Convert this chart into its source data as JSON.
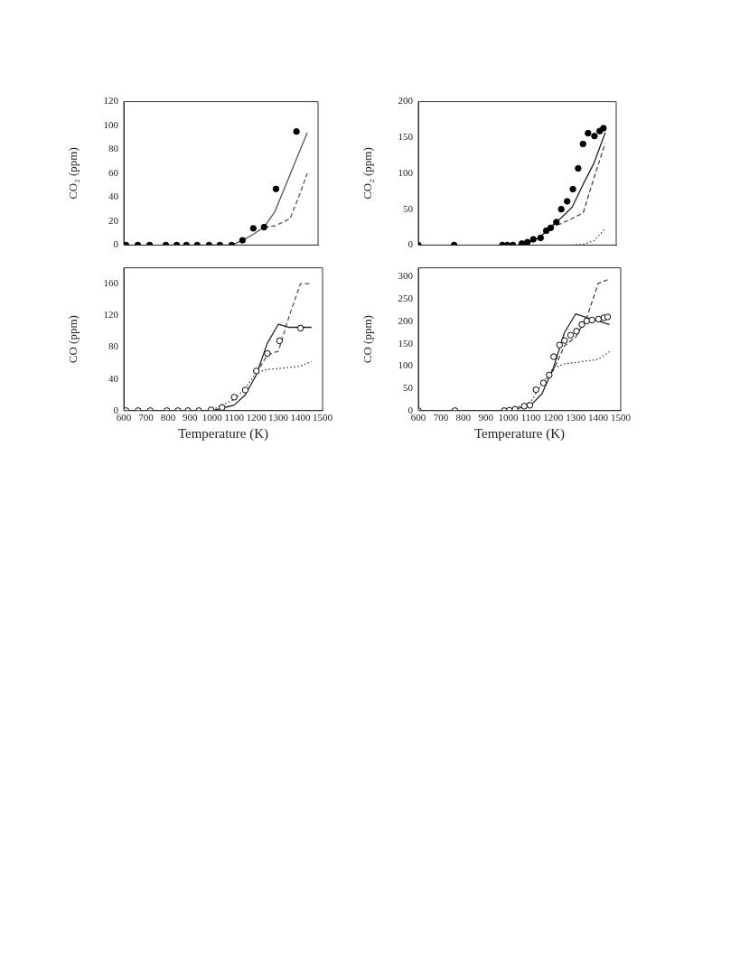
{
  "chart_data": [
    {
      "type": "line",
      "ylabel": "CO₂ (ppm)",
      "xlim": [
        600,
        1500
      ],
      "ylim": [
        0,
        120
      ],
      "yticks": [
        0,
        20,
        40,
        60,
        80,
        100,
        120
      ],
      "tick_labels": "y",
      "grid": false,
      "legend": false,
      "series": [
        {
          "type": "scatter",
          "marker": "circle",
          "color": "#000000",
          "x": [
            610,
            665,
            720,
            795,
            845,
            890,
            940,
            995,
            1045,
            1100,
            1150,
            1200,
            1250,
            1305,
            1400
          ],
          "values": [
            0,
            0,
            0,
            0,
            0,
            0,
            0,
            0,
            0,
            0,
            4,
            14,
            15,
            47,
            95
          ]
        },
        {
          "marker": "none",
          "line_style": "solid",
          "color": "#555555",
          "x": [
            1000,
            1100,
            1150,
            1200,
            1250,
            1300,
            1350,
            1400,
            1450
          ],
          "values": [
            0,
            0,
            4,
            9,
            15,
            28,
            50,
            72,
            94
          ]
        },
        {
          "marker": "none",
          "line_style": "dashed",
          "color": "#555555",
          "x": [
            1250,
            1300,
            1370,
            1410,
            1450
          ],
          "values": [
            15,
            16,
            22,
            40,
            60
          ]
        }
      ]
    },
    {
      "type": "line",
      "ylabel": "CO (ppm)",
      "xlabel": "Temperature (K)",
      "xlim": [
        600,
        1500
      ],
      "ylim": [
        0,
        180
      ],
      "xticks": [
        600,
        700,
        800,
        900,
        1000,
        1100,
        1200,
        1300,
        1400,
        1500
      ],
      "yticks": [
        0,
        40,
        80,
        120,
        160
      ],
      "grid": false,
      "legend": false,
      "series": [
        {
          "type": "scatter",
          "marker": "circle-open",
          "color": "#000000",
          "x": [
            610,
            665,
            720,
            795,
            845,
            890,
            940,
            995,
            1045,
            1100,
            1150,
            1200,
            1250,
            1305,
            1400
          ],
          "values": [
            0,
            0,
            0,
            0,
            0,
            0,
            0,
            1,
            4,
            17,
            26,
            50,
            72,
            88,
            104
          ]
        },
        {
          "marker": "none",
          "line_style": "solid",
          "color": "#222222",
          "x": [
            950,
            1000,
            1100,
            1150,
            1200,
            1250,
            1300,
            1350,
            1450
          ],
          "values": [
            0,
            0,
            7,
            20,
            45,
            85,
            109,
            105,
            105
          ]
        },
        {
          "marker": "none",
          "line_style": "dashed",
          "color": "#555555",
          "x": [
            1200,
            1250,
            1300,
            1350,
            1400,
            1450
          ],
          "values": [
            47,
            70,
            75,
            120,
            160,
            160
          ]
        },
        {
          "marker": "none",
          "line_style": "dotted",
          "color": "#333333",
          "x": [
            1000,
            1100,
            1150,
            1200,
            1250,
            1300,
            1400,
            1450
          ],
          "values": [
            1,
            14,
            28,
            48,
            52,
            53,
            56,
            62
          ]
        }
      ]
    },
    {
      "type": "line",
      "ylabel": "CO₂ (ppm)",
      "xlim": [
        600,
        1500
      ],
      "ylim": [
        0,
        200
      ],
      "yticks": [
        0,
        50,
        100,
        150,
        200
      ],
      "tick_labels": "y",
      "grid": false,
      "legend": false,
      "series": [
        {
          "type": "scatter",
          "marker": "circle",
          "color": "#000000",
          "x": [
            600,
            763,
            982,
            1005,
            1030,
            1071,
            1096,
            1123,
            1156,
            1182,
            1202,
            1228,
            1250,
            1277,
            1303,
            1327,
            1349,
            1372,
            1401,
            1425,
            1442
          ],
          "values": [
            0,
            0,
            0,
            0,
            0,
            2,
            4,
            8,
            10,
            20,
            24,
            32,
            50,
            61,
            78,
            107,
            141,
            156,
            152,
            159,
            163
          ]
        },
        {
          "marker": "none",
          "line_style": "solid",
          "color": "#222222",
          "x": [
            1050,
            1100,
            1150,
            1200,
            1250,
            1300,
            1350,
            1400,
            1450
          ],
          "values": [
            0,
            3,
            10,
            25,
            38,
            53,
            85,
            115,
            157
          ]
        },
        {
          "marker": "none",
          "line_style": "dashed",
          "color": "#444444",
          "x": [
            1200,
            1250,
            1300,
            1350,
            1400,
            1450
          ],
          "values": [
            25,
            30,
            37,
            45,
            95,
            142
          ]
        },
        {
          "marker": "none",
          "line_style": "dotted",
          "color": "#333333",
          "x": [
            1300,
            1350,
            1400,
            1450
          ],
          "values": [
            0,
            1,
            6,
            23
          ]
        }
      ]
    },
    {
      "type": "line",
      "ylabel": "CO (ppm)",
      "xlabel": "Temperature (K)",
      "xlim": [
        600,
        1500
      ],
      "ylim": [
        0,
        320
      ],
      "xticks": [
        600,
        700,
        800,
        900,
        1000,
        1100,
        1200,
        1300,
        1400,
        1500
      ],
      "yticks": [
        0,
        50,
        100,
        150,
        200,
        250,
        300
      ],
      "grid": false,
      "legend": false,
      "series": [
        {
          "type": "scatter",
          "marker": "circle-open",
          "color": "#000000",
          "x": [
            600,
            763,
            982,
            1005,
            1030,
            1071,
            1096,
            1123,
            1156,
            1182,
            1202,
            1228,
            1250,
            1277,
            1303,
            1327,
            1349,
            1372,
            1401,
            1425,
            1442
          ],
          "values": [
            0,
            0,
            0,
            1,
            3,
            10,
            12,
            47,
            62,
            80,
            121,
            147,
            157,
            169,
            178,
            193,
            201,
            203,
            205,
            208,
            210
          ]
        },
        {
          "marker": "none",
          "line_style": "solid",
          "color": "#222222",
          "x": [
            900,
            1000,
            1100,
            1150,
            1200,
            1250,
            1300,
            1350,
            1450
          ],
          "values": [
            0,
            0,
            12,
            38,
            95,
            175,
            217,
            208,
            193
          ]
        },
        {
          "marker": "none",
          "line_style": "dashed",
          "color": "#444444",
          "x": [
            1150,
            1200,
            1250,
            1300,
            1350,
            1400,
            1450
          ],
          "values": [
            60,
            90,
            145,
            165,
            210,
            285,
            295
          ]
        },
        {
          "marker": "none",
          "line_style": "dotted",
          "color": "#333333",
          "x": [
            1000,
            1050,
            1100,
            1150,
            1200,
            1250,
            1300,
            1400,
            1450
          ],
          "values": [
            1,
            10,
            20,
            60,
            95,
            105,
            108,
            115,
            132
          ]
        }
      ]
    }
  ]
}
